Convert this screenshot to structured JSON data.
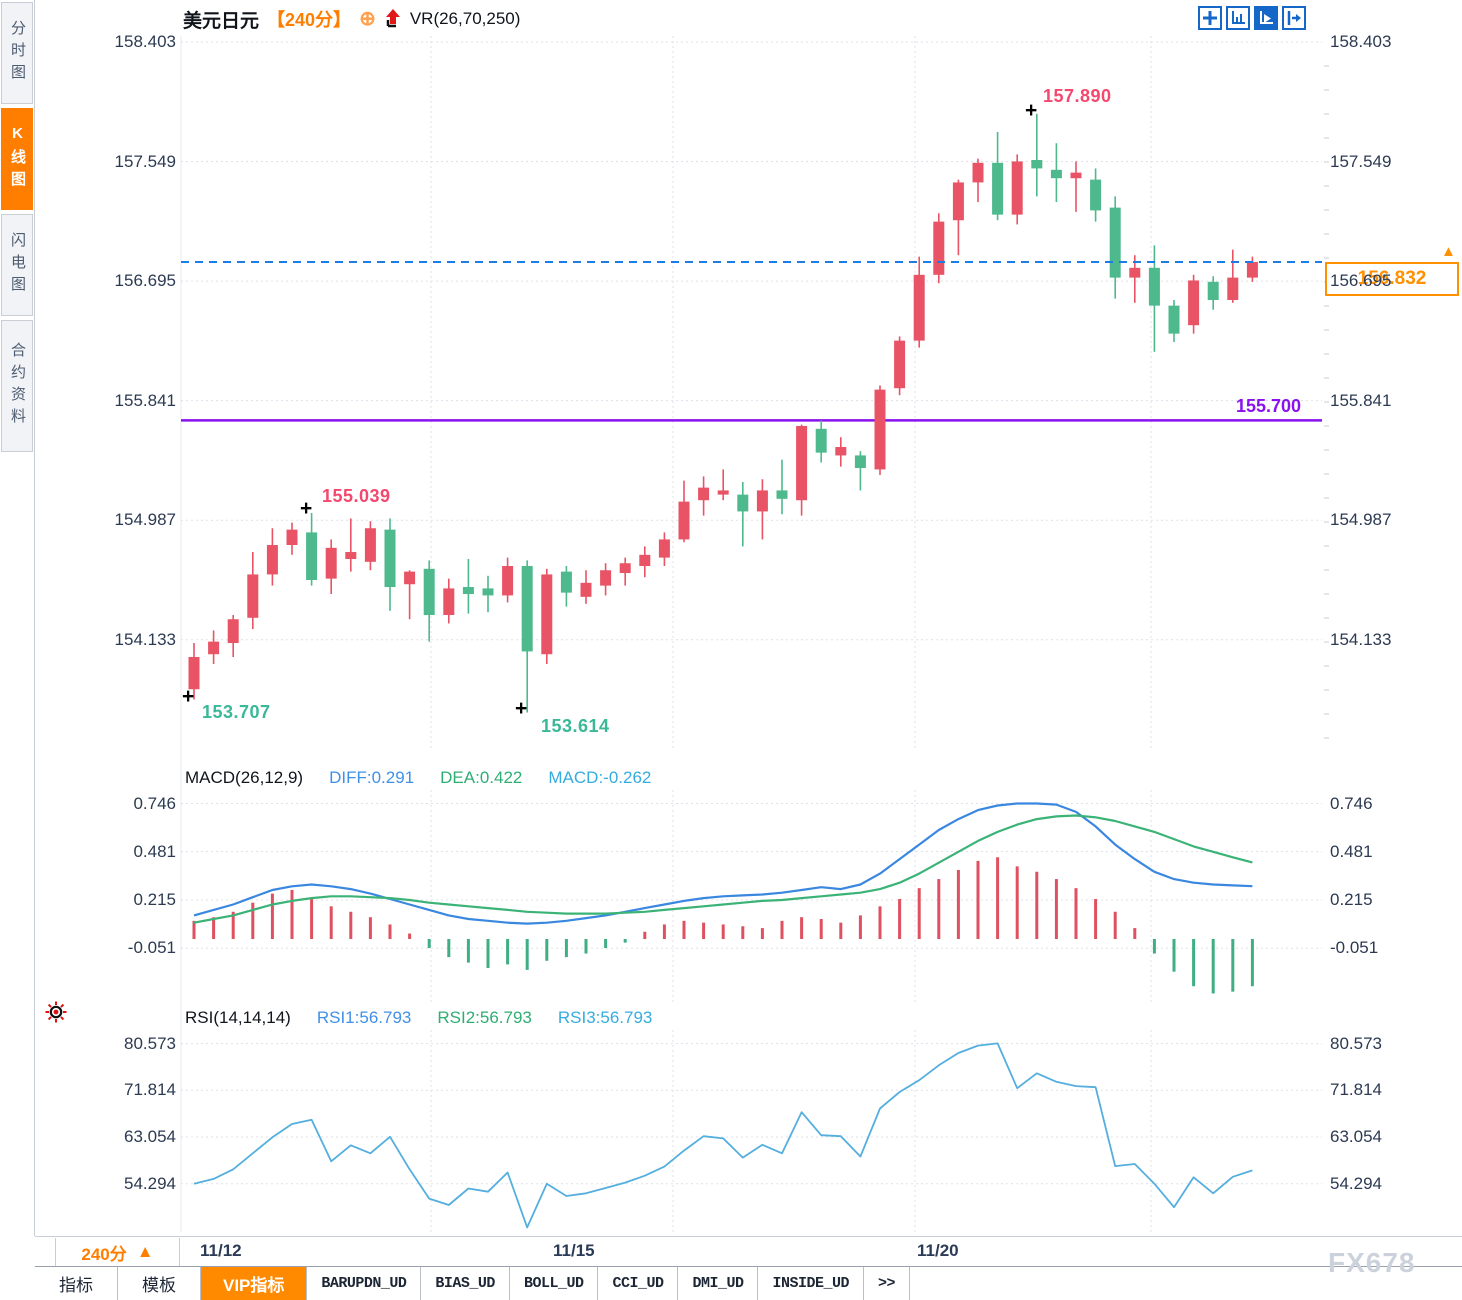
{
  "sidebar": {
    "tabs": [
      {
        "label": "分时图",
        "active": false
      },
      {
        "label": "K线图",
        "active": true
      },
      {
        "label": "闪电图",
        "active": false
      },
      {
        "label": "合约资料",
        "active": false
      }
    ]
  },
  "header": {
    "symbol": "美元日元",
    "interval": "【240分】",
    "target_icon": "⊕",
    "indicator": "VR(26,70,250)",
    "toolbar_icons": [
      "move-icon",
      "axis-scale-icon",
      "axis-play-icon",
      "exit-right-icon"
    ]
  },
  "price_axis": {
    "labels": [
      "158.403",
      "157.549",
      "156.695",
      "155.841",
      "154.987",
      "154.133"
    ]
  },
  "overlays": {
    "current_price": "156.832",
    "support_line_label": "155.700",
    "high_label": "157.890",
    "swing_high_label": "155.039",
    "low_label_1": "153.707",
    "low_label_2": "153.614",
    "plus_marker": "+",
    "arrow_up": "▲"
  },
  "macd_panel": {
    "title": "MACD(26,12,9)",
    "diff_label": "DIFF:0.291",
    "dea_label": "DEA:0.422",
    "macd_label": "MACD:-0.262",
    "axis_labels": [
      "0.746",
      "0.481",
      "0.215",
      "-0.051"
    ],
    "axis_values": [
      0.746,
      0.481,
      0.215,
      -0.051
    ]
  },
  "rsi_panel": {
    "title": "RSI(14,14,14)",
    "rsi1_label": "RSI1:56.793",
    "rsi2_label": "RSI2:56.793",
    "rsi3_label": "RSI3:56.793",
    "axis_labels": [
      "80.573",
      "71.814",
      "63.054",
      "54.294"
    ],
    "axis_values": [
      80.573,
      71.814,
      63.054,
      54.294
    ]
  },
  "xaxis": {
    "period": "240分",
    "period_arrow": "▲",
    "dates": [
      "11/12",
      "11/15",
      "11/20"
    ],
    "date_x": [
      200,
      553,
      917
    ]
  },
  "bottom_tabs": [
    {
      "label": "指标",
      "active": false,
      "mono": false
    },
    {
      "label": "模板",
      "active": false,
      "mono": false
    },
    {
      "label": "VIP指标",
      "active": true,
      "mono": false
    },
    {
      "label": "BARUPDN_UD",
      "active": false,
      "mono": true
    },
    {
      "label": "BIAS_UD",
      "active": false,
      "mono": true
    },
    {
      "label": "BOLL_UD",
      "active": false,
      "mono": true
    },
    {
      "label": "CCI_UD",
      "active": false,
      "mono": true
    },
    {
      "label": "DMI_UD",
      "active": false,
      "mono": true
    },
    {
      "label": "INSIDE_UD",
      "active": false,
      "mono": true
    },
    {
      "label": ">>",
      "active": false,
      "mono": true
    }
  ],
  "watermark": "FX678",
  "chart_data": {
    "type": "candlestick",
    "symbol": "USDJPY 240min",
    "price_range": {
      "top_label": 158.403,
      "bottom_label": 154.133
    },
    "current_price": 156.832,
    "support_line": 155.7,
    "marked_high": 157.89,
    "marked_swing_high": 155.039,
    "marked_low_1": 153.707,
    "marked_low_2": 153.614,
    "candles": [
      [
        153.78,
        154.11,
        153.707,
        154.01
      ],
      [
        154.03,
        154.2,
        153.96,
        154.12
      ],
      [
        154.11,
        154.31,
        154.01,
        154.28
      ],
      [
        154.29,
        154.76,
        154.21,
        154.6
      ],
      [
        154.6,
        154.93,
        154.52,
        154.81
      ],
      [
        154.81,
        154.97,
        154.74,
        154.92
      ],
      [
        154.9,
        155.039,
        154.52,
        154.56
      ],
      [
        154.57,
        154.85,
        154.46,
        154.79
      ],
      [
        154.71,
        155.0,
        154.62,
        154.76
      ],
      [
        154.69,
        154.98,
        154.63,
        154.93
      ],
      [
        154.92,
        155.0,
        154.34,
        154.51
      ],
      [
        154.53,
        154.63,
        154.28,
        154.62
      ],
      [
        154.64,
        154.7,
        154.12,
        154.31
      ],
      [
        154.31,
        154.57,
        154.25,
        154.5
      ],
      [
        154.51,
        154.71,
        154.32,
        154.46
      ],
      [
        154.5,
        154.59,
        154.33,
        154.45
      ],
      [
        154.45,
        154.72,
        154.4,
        154.66
      ],
      [
        154.66,
        154.7,
        153.614,
        154.05
      ],
      [
        154.03,
        154.64,
        153.96,
        154.6
      ],
      [
        154.62,
        154.66,
        154.37,
        154.47
      ],
      [
        154.44,
        154.63,
        154.39,
        154.54
      ],
      [
        154.52,
        154.68,
        154.45,
        154.63
      ],
      [
        154.61,
        154.72,
        154.52,
        154.68
      ],
      [
        154.66,
        154.8,
        154.58,
        154.74
      ],
      [
        154.72,
        154.9,
        154.66,
        154.85
      ],
      [
        154.85,
        155.27,
        154.83,
        155.12
      ],
      [
        155.13,
        155.3,
        155.02,
        155.22
      ],
      [
        155.17,
        155.35,
        155.13,
        155.2
      ],
      [
        155.17,
        155.26,
        154.8,
        155.05
      ],
      [
        155.05,
        155.28,
        154.85,
        155.2
      ],
      [
        155.2,
        155.42,
        155.03,
        155.14
      ],
      [
        155.13,
        155.67,
        155.02,
        155.66
      ],
      [
        155.64,
        155.7,
        155.4,
        155.47
      ],
      [
        155.45,
        155.58,
        155.37,
        155.51
      ],
      [
        155.45,
        155.48,
        155.2,
        155.36
      ],
      [
        155.35,
        155.95,
        155.31,
        155.92
      ],
      [
        155.93,
        156.3,
        155.88,
        156.27
      ],
      [
        156.27,
        156.87,
        156.22,
        156.74
      ],
      [
        156.74,
        157.18,
        156.68,
        157.12
      ],
      [
        157.13,
        157.42,
        156.88,
        157.4
      ],
      [
        157.4,
        157.57,
        157.26,
        157.54
      ],
      [
        157.54,
        157.76,
        157.13,
        157.17
      ],
      [
        157.17,
        157.6,
        157.1,
        157.55
      ],
      [
        157.56,
        157.89,
        157.3,
        157.5
      ],
      [
        157.49,
        157.68,
        157.26,
        157.43
      ],
      [
        157.43,
        157.55,
        157.19,
        157.47
      ],
      [
        157.42,
        157.5,
        157.12,
        157.2
      ],
      [
        157.22,
        157.3,
        156.57,
        156.72
      ],
      [
        156.72,
        156.88,
        156.54,
        156.79
      ],
      [
        156.79,
        156.95,
        156.19,
        156.52
      ],
      [
        156.52,
        156.56,
        156.26,
        156.32
      ],
      [
        156.38,
        156.74,
        156.32,
        156.7
      ],
      [
        156.69,
        156.73,
        156.49,
        156.56
      ],
      [
        156.56,
        156.92,
        156.54,
        156.72
      ],
      [
        156.72,
        156.87,
        156.69,
        156.832
      ]
    ],
    "macd": {
      "diff": [
        0.13,
        0.16,
        0.19,
        0.23,
        0.27,
        0.29,
        0.3,
        0.29,
        0.275,
        0.25,
        0.22,
        0.19,
        0.16,
        0.13,
        0.11,
        0.1,
        0.09,
        0.085,
        0.09,
        0.1,
        0.115,
        0.13,
        0.15,
        0.17,
        0.19,
        0.21,
        0.225,
        0.235,
        0.24,
        0.245,
        0.255,
        0.27,
        0.285,
        0.275,
        0.3,
        0.36,
        0.44,
        0.52,
        0.6,
        0.66,
        0.71,
        0.735,
        0.746,
        0.746,
        0.74,
        0.7,
        0.62,
        0.52,
        0.44,
        0.37,
        0.33,
        0.31,
        0.3,
        0.295,
        0.291
      ],
      "dea": [
        0.09,
        0.11,
        0.13,
        0.16,
        0.19,
        0.21,
        0.225,
        0.235,
        0.235,
        0.23,
        0.225,
        0.215,
        0.2,
        0.19,
        0.18,
        0.17,
        0.16,
        0.15,
        0.145,
        0.14,
        0.14,
        0.14,
        0.145,
        0.15,
        0.16,
        0.17,
        0.18,
        0.19,
        0.2,
        0.21,
        0.215,
        0.225,
        0.235,
        0.245,
        0.255,
        0.275,
        0.31,
        0.36,
        0.42,
        0.48,
        0.54,
        0.59,
        0.63,
        0.66,
        0.675,
        0.68,
        0.67,
        0.65,
        0.62,
        0.59,
        0.55,
        0.51,
        0.48,
        0.45,
        0.422
      ],
      "hist": [
        0.1,
        0.12,
        0.15,
        0.2,
        0.25,
        0.27,
        0.22,
        0.18,
        0.15,
        0.12,
        0.08,
        0.03,
        -0.05,
        -0.1,
        -0.13,
        -0.16,
        -0.14,
        -0.17,
        -0.12,
        -0.1,
        -0.08,
        -0.05,
        -0.02,
        0.04,
        0.08,
        0.1,
        0.09,
        0.08,
        0.07,
        0.06,
        0.1,
        0.12,
        0.11,
        0.09,
        0.13,
        0.18,
        0.22,
        0.28,
        0.33,
        0.38,
        0.43,
        0.45,
        0.4,
        0.37,
        0.33,
        0.28,
        0.22,
        0.15,
        0.06,
        -0.08,
        -0.18,
        -0.26,
        -0.3,
        -0.29,
        -0.26
      ]
    },
    "rsi": [
      54.3,
      55.2,
      57.0,
      60.0,
      63.0,
      65.5,
      66.3,
      58.5,
      61.5,
      60.0,
      63.1,
      57.0,
      51.5,
      50.3,
      53.4,
      52.8,
      56.4,
      46.1,
      54.3,
      52.0,
      52.5,
      53.5,
      54.5,
      55.8,
      57.5,
      60.5,
      63.2,
      62.8,
      59.2,
      61.6,
      60.0,
      67.7,
      63.4,
      63.2,
      59.4,
      68.4,
      71.5,
      73.7,
      76.5,
      78.8,
      80.2,
      80.6,
      72.2,
      75.0,
      73.4,
      72.6,
      72.4,
      57.6,
      58.0,
      54.3,
      49.9,
      55.5,
      52.5,
      55.6,
      56.8
    ],
    "colors": {
      "up": "#e85465",
      "down": "#4db98c",
      "hist_up": "#df5060",
      "hist_down": "#3fae82",
      "diff_line": "#3a87e0",
      "dea_line": "#3bb377",
      "rsi_line": "#54aede",
      "current_dash": "#1b7ce8",
      "support": "#8a10f0",
      "grid": "#dde1e9",
      "tick": "#c8cdd6",
      "accent_orange": "#ff7e00"
    }
  }
}
